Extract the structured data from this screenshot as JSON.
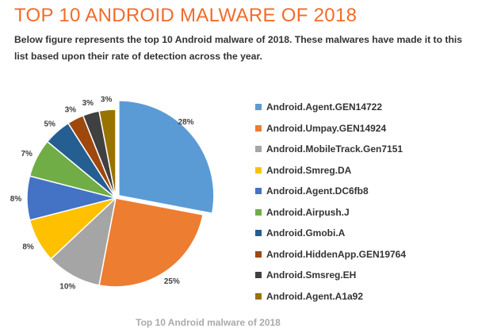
{
  "header": {
    "title": "TOP 10 ANDROID MALWARE OF 2018",
    "description": "Below figure represents the top 10 Android malware of 2018. These malwares have made it to this list based upon their rate of detection across the year."
  },
  "chart_data": {
    "type": "pie",
    "title": "Top 10 Android malware of 2018",
    "legend_position": "right",
    "categories": [
      "Android.Agent.GEN14722",
      "Android.Umpay.GEN14924",
      "Android.MobileTrack.Gen7151",
      "Android.Smreg.DA",
      "Android.Agent.DC6fb8",
      "Android.Airpush.J",
      "Android.Gmobi.A",
      "Android.HiddenApp.GEN19764",
      "Android.Smsreg.EH",
      "Android.Agent.A1a92"
    ],
    "values": [
      28,
      25,
      10,
      8,
      8,
      7,
      5,
      3,
      3,
      3
    ],
    "labels": [
      "28%",
      "25%",
      "10%",
      "8%",
      "8%",
      "7%",
      "5%",
      "3%",
      "3%",
      "3%"
    ],
    "colors": [
      "#5b9bd5",
      "#ed7d31",
      "#a5a5a5",
      "#ffc000",
      "#4472c4",
      "#70ad47",
      "#255e91",
      "#9e480e",
      "#404040",
      "#997300"
    ]
  }
}
